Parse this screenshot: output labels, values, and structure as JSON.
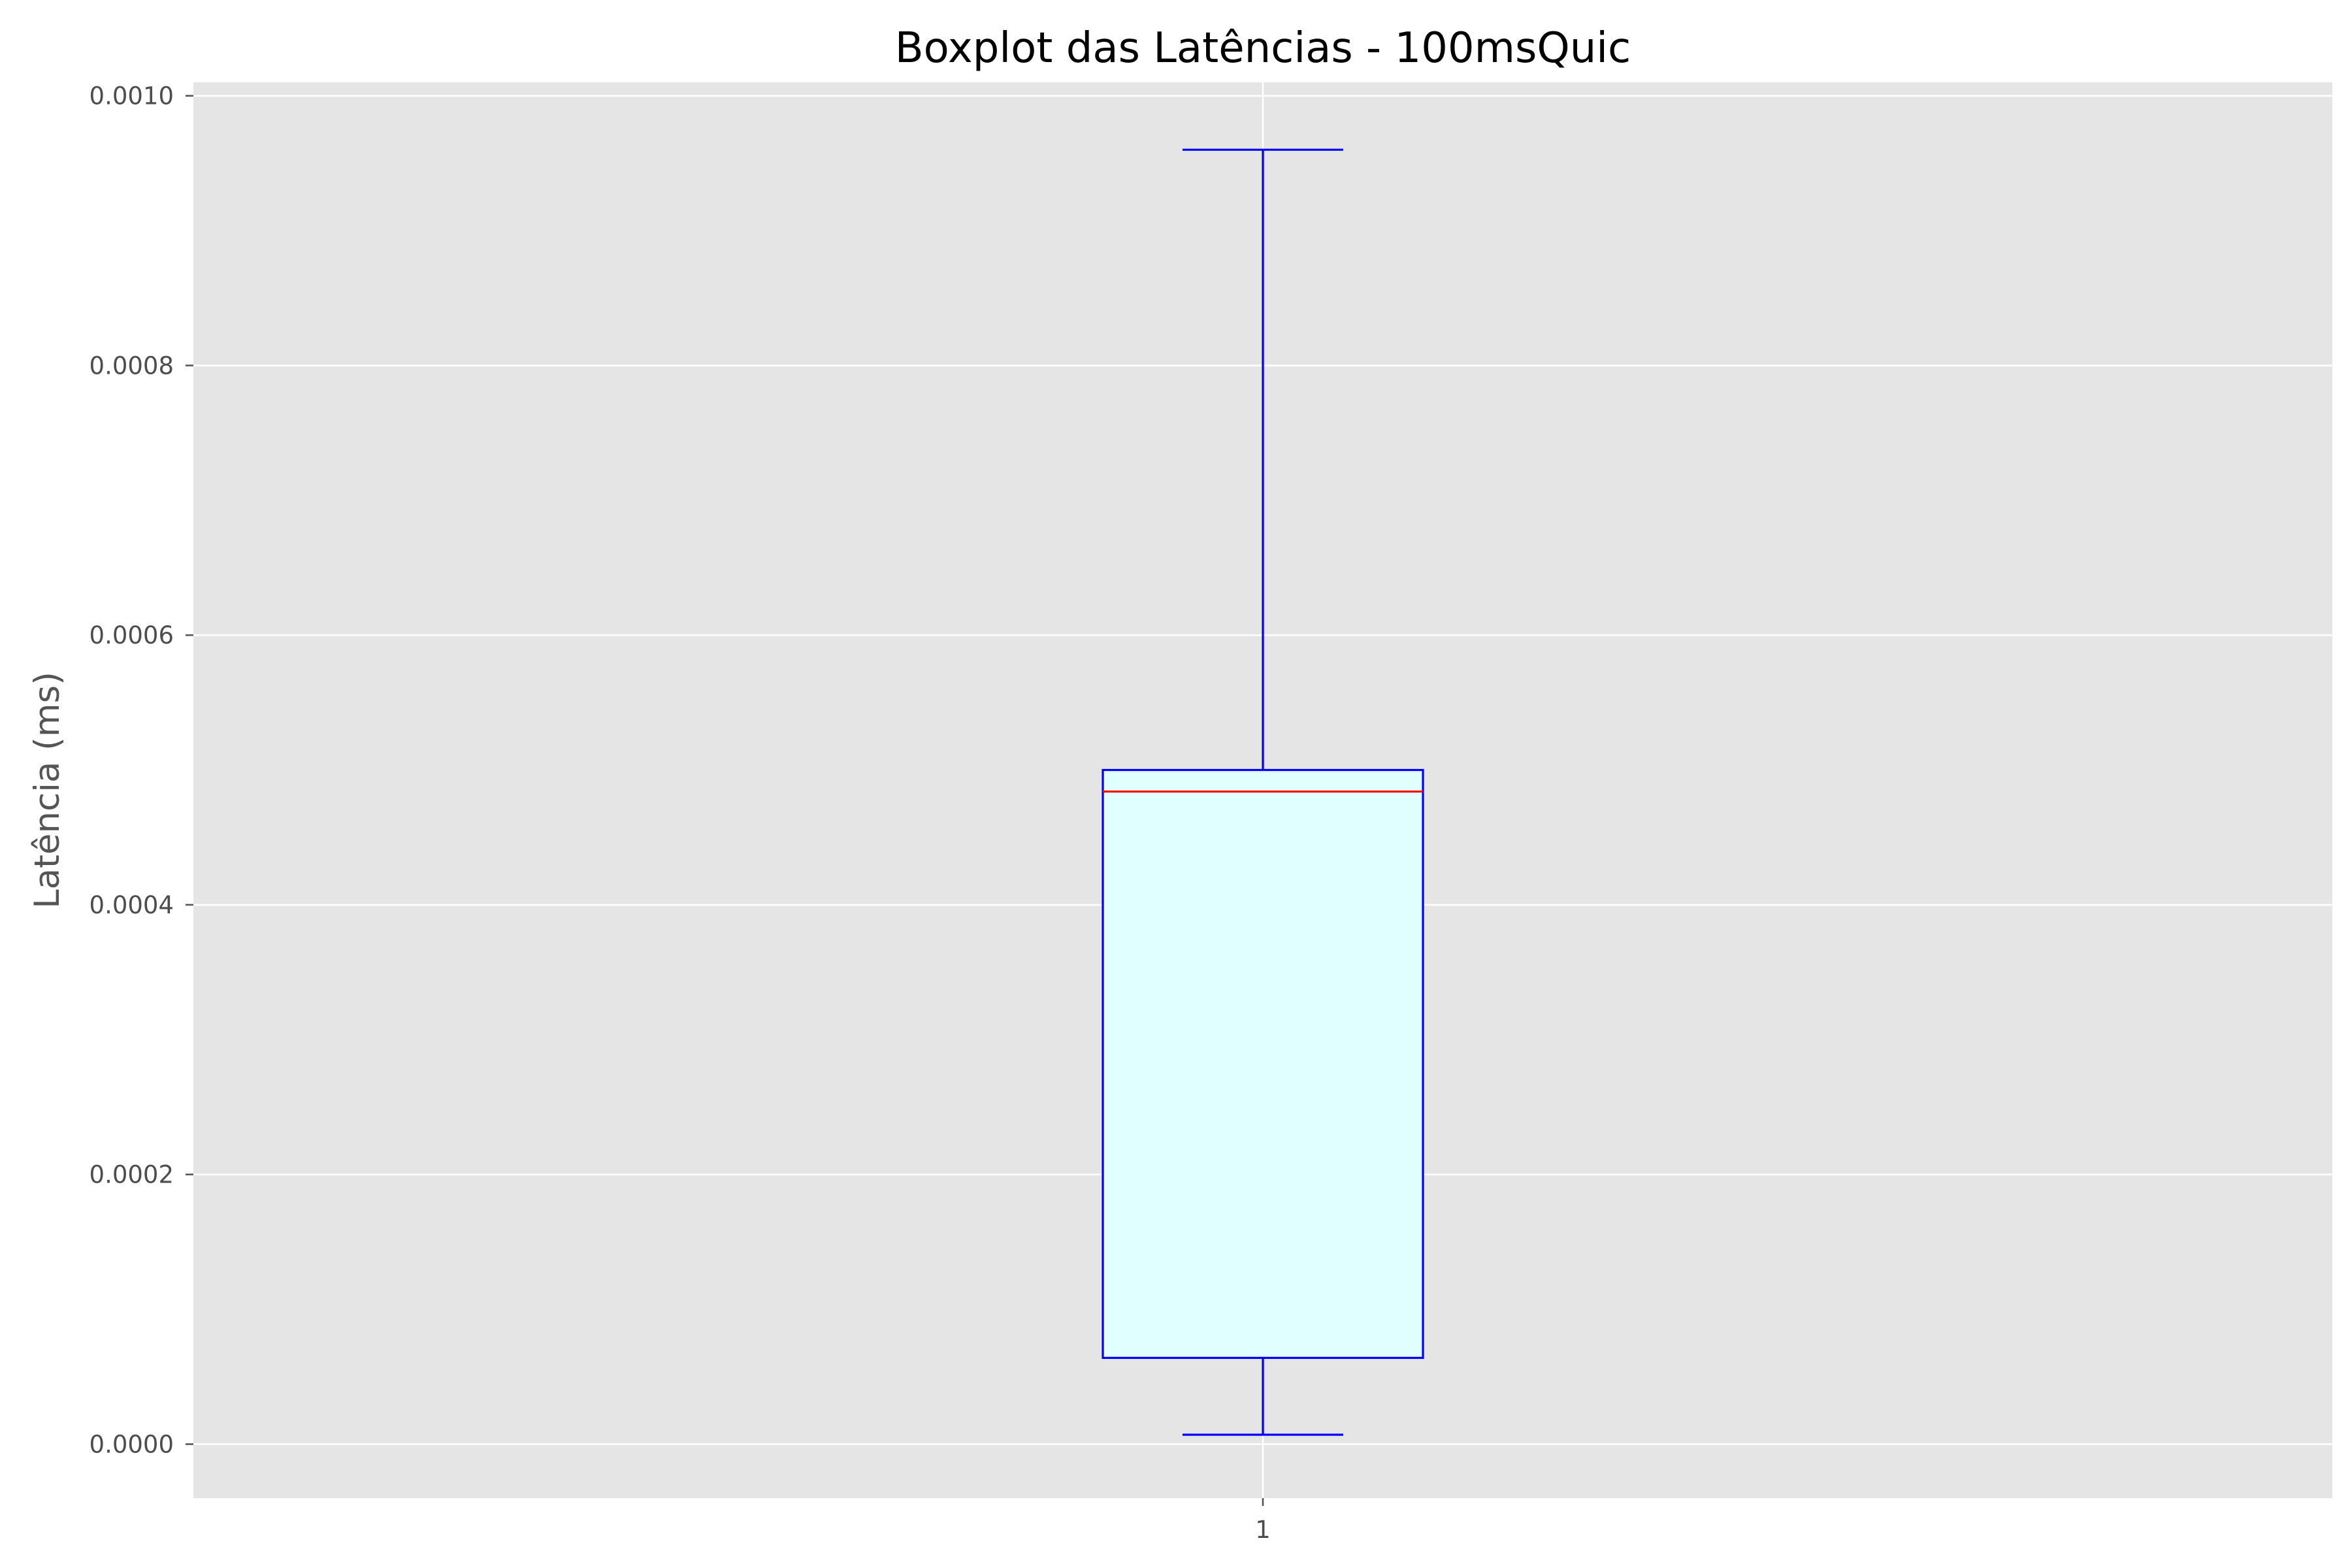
{
  "chart_data": {
    "type": "boxplot",
    "title": "Boxplot das Latências - 100msQuic",
    "xlabel": "",
    "ylabel": "Latência (ms)",
    "categories": [
      "1"
    ],
    "ylim": [
      -4e-05,
      0.00101
    ],
    "yticks": [
      {
        "value": 0.0,
        "label": "0.0000"
      },
      {
        "value": 0.0002,
        "label": "0.0002"
      },
      {
        "value": 0.0004,
        "label": "0.0004"
      },
      {
        "value": 0.0006,
        "label": "0.0006"
      },
      {
        "value": 0.0008,
        "label": "0.0008"
      },
      {
        "value": 0.001,
        "label": "0.0010"
      }
    ],
    "boxes": [
      {
        "category": "1",
        "whisker_low": 7e-06,
        "q1": 6.4e-05,
        "median": 0.000484,
        "q3": 0.0005,
        "whisker_high": 0.00096
      }
    ],
    "grid": true,
    "legend": "none",
    "colors": {
      "background": "#e5e5e5",
      "grid": "#ffffff",
      "box_edge": "#0000ff",
      "box_fill": "#e0ffff",
      "median": "#ff0000",
      "whisker": "#0000ff"
    }
  }
}
